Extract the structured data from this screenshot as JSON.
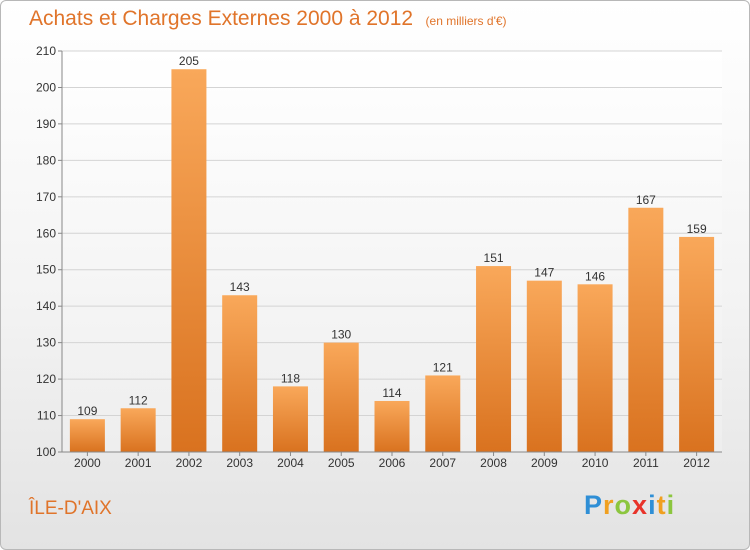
{
  "title": "Achats et Charges Externes 2000 à 2012",
  "unit": "(en milliers d'€)",
  "commune": "ÎLE-D'AIX",
  "logo": {
    "letters": [
      "P",
      "r",
      "o",
      "x",
      "i",
      "t",
      "i"
    ],
    "colors": [
      "#2f8fd6",
      "#f0a020",
      "#8cc63f",
      "#e8332a",
      "#2f8fd6",
      "#f0a020",
      "#8cc63f"
    ]
  },
  "colors": {
    "accent": "#e0742a",
    "bar_top": "#f9a85a",
    "bar_bottom": "#d9721f"
  },
  "chart_data": {
    "type": "bar",
    "categories": [
      "2000",
      "2001",
      "2002",
      "2003",
      "2004",
      "2005",
      "2006",
      "2007",
      "2008",
      "2009",
      "2010",
      "2011",
      "2012"
    ],
    "values": [
      109,
      112,
      205,
      143,
      118,
      130,
      114,
      121,
      151,
      147,
      146,
      167,
      159
    ],
    "ylim": [
      100,
      210
    ],
    "yticks": [
      100,
      110,
      120,
      130,
      140,
      150,
      160,
      170,
      180,
      190,
      200,
      210
    ],
    "grid": true,
    "title": "Achats et Charges Externes 2000 à 2012",
    "xlabel": "",
    "ylabel": ""
  }
}
